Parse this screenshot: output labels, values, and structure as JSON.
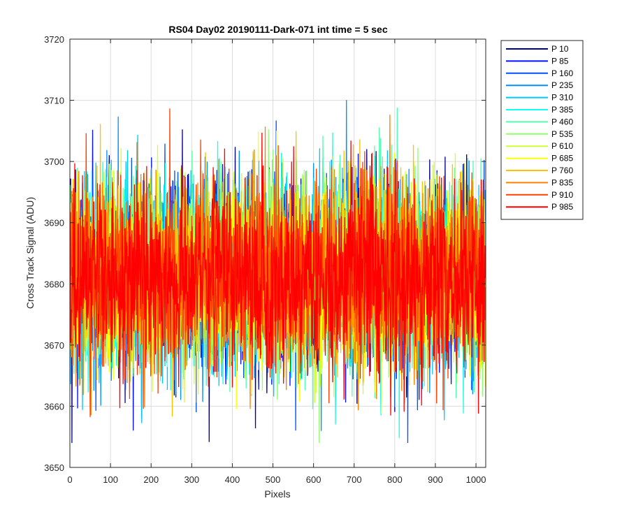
{
  "chart_data": {
    "type": "line",
    "title": "RS04 Day02 20190111-Dark-071 int time = 5 sec",
    "xlabel": "Pixels",
    "ylabel": "Cross Track Signal (ADU)",
    "xlim": [
      0,
      1024
    ],
    "ylim": [
      3650,
      3720
    ],
    "xticks": [
      0,
      100,
      200,
      300,
      400,
      500,
      600,
      700,
      800,
      900,
      1000
    ],
    "yticks": [
      3650,
      3660,
      3670,
      3680,
      3690,
      3700,
      3710,
      3720
    ],
    "grid": true,
    "legend_position": "outside-top-right",
    "noise_model": {
      "n_points": 1024,
      "mean": 3681.5,
      "std": 7.5,
      "min": 3654,
      "max": 3714
    },
    "series": [
      {
        "name": "P 10",
        "color": "#00008f"
      },
      {
        "name": "P 85",
        "color": "#0010ff"
      },
      {
        "name": "P 160",
        "color": "#0050ff"
      },
      {
        "name": "P 235",
        "color": "#0090ff"
      },
      {
        "name": "P 310",
        "color": "#00c8ff"
      },
      {
        "name": "P 385",
        "color": "#10ffef"
      },
      {
        "name": "P 460",
        "color": "#50ffaf"
      },
      {
        "name": "P 535",
        "color": "#90ff6f"
      },
      {
        "name": "P 610",
        "color": "#cfff30"
      },
      {
        "name": "P 685",
        "color": "#ffff00"
      },
      {
        "name": "P 760",
        "color": "#ffc000"
      },
      {
        "name": "P 835",
        "color": "#ff8000"
      },
      {
        "name": "P 910",
        "color": "#ff4000"
      },
      {
        "name": "P 985",
        "color": "#ff0000"
      }
    ]
  }
}
